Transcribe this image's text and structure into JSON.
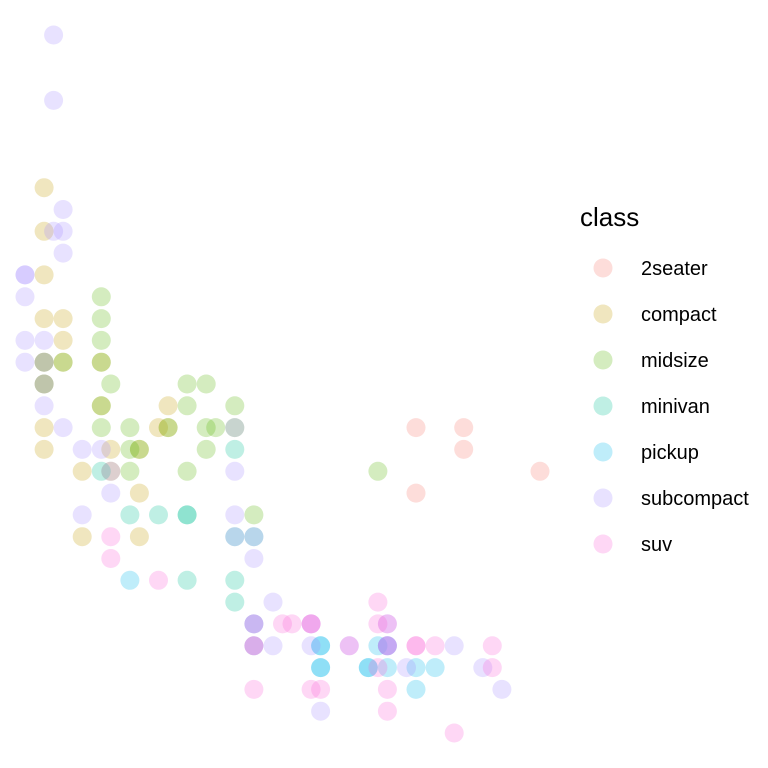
{
  "chart_data": {
    "type": "scatter",
    "title": "",
    "xlabel": "",
    "ylabel": "",
    "axes_visible": false,
    "grid": false,
    "legend": {
      "title": "class",
      "position": "right",
      "entries": [
        "2seater",
        "compact",
        "midsize",
        "minivan",
        "pickup",
        "subcompact",
        "suv"
      ]
    },
    "colors": {
      "2seater": "#F8766D",
      "compact": "#C49A00",
      "midsize": "#53B400",
      "minivan": "#00C094",
      "pickup": "#00B6EB",
      "subcompact": "#A58AFF",
      "suv": "#FB61D7"
    },
    "point_opacity": 0.25,
    "xlim": [
      1.6,
      7.0
    ],
    "ylim": [
      12,
      44
    ],
    "series": [
      {
        "name": "2seater",
        "x": [
          5.7,
          5.7,
          6.2,
          6.2,
          7.0
        ],
        "y": [
          26,
          23,
          26,
          25,
          24
        ]
      },
      {
        "name": "compact",
        "x": [
          1.8,
          1.8,
          1.8,
          1.8,
          1.8,
          1.8,
          1.8,
          1.8,
          2.0,
          2.0,
          2.0,
          2.4,
          2.4,
          2.5,
          2.5,
          2.8,
          2.8,
          2.8,
          3.0,
          3.1,
          3.1,
          2.2,
          2.2
        ],
        "y": [
          37,
          35,
          33,
          31,
          29,
          26,
          25,
          28,
          29,
          31,
          30,
          29,
          27,
          25,
          24,
          25,
          21,
          23,
          26,
          26,
          27,
          24,
          21
        ]
      },
      {
        "name": "midsize",
        "x": [
          2.4,
          2.4,
          2.4,
          2.4,
          2.4,
          2.5,
          3.1,
          3.3,
          3.3,
          3.3,
          3.5,
          3.5,
          3.5,
          3.6,
          3.8,
          3.8,
          4.0,
          2.7,
          2.7,
          2.7,
          1.8,
          1.8,
          2.0,
          2.4,
          2.8,
          5.3
        ],
        "y": [
          32,
          30,
          29,
          31,
          27,
          28,
          26,
          28,
          27,
          24,
          26,
          25,
          28,
          26,
          27,
          26,
          22,
          25,
          26,
          24,
          28,
          29,
          29,
          26,
          25,
          24
        ]
      },
      {
        "name": "minivan",
        "x": [
          2.4,
          3.0,
          3.3,
          3.3,
          3.3,
          3.8,
          3.8,
          3.8,
          4.0,
          3.8,
          2.7
        ],
        "y": [
          24,
          22,
          22,
          19,
          22,
          21,
          19,
          18,
          21,
          25,
          22
        ]
      },
      {
        "name": "pickup",
        "x": [
          2.7,
          4.0,
          4.0,
          4.7,
          4.7,
          4.7,
          4.7,
          5.2,
          5.2,
          5.3,
          5.4,
          5.4,
          5.7,
          5.7,
          5.9
        ],
        "y": [
          19,
          16,
          17,
          16,
          15,
          16,
          15,
          15,
          15,
          16,
          15,
          16,
          14,
          15,
          15
        ]
      },
      {
        "name": "subcompact",
        "x": [
          1.6,
          1.6,
          1.6,
          1.6,
          1.6,
          1.8,
          1.8,
          1.8,
          1.8,
          1.9,
          1.9,
          1.9,
          2.0,
          2.0,
          2.0,
          2.0,
          2.5,
          2.5,
          2.2,
          2.2,
          2.4,
          3.8,
          3.8,
          3.8,
          3.8,
          4.0,
          4.0,
          4.0,
          4.2,
          4.2,
          4.6,
          4.6,
          4.7,
          5.0,
          5.4,
          5.4,
          5.4,
          5.6,
          6.1,
          6.4,
          6.6
        ],
        "y": [
          33,
          32,
          30,
          29,
          33,
          30,
          29,
          27,
          28,
          44,
          41,
          35,
          34,
          36,
          35,
          26,
          24,
          23,
          25,
          22,
          25,
          26,
          24,
          22,
          21,
          20,
          21,
          17,
          18,
          16,
          17,
          16,
          13,
          16,
          16,
          17,
          16,
          15,
          16,
          15,
          14
        ]
      },
      {
        "name": "suv",
        "x": [
          2.5,
          2.5,
          3.0,
          4.0,
          4.0,
          4.0,
          4.0,
          4.3,
          4.4,
          4.6,
          4.6,
          4.6,
          4.7,
          5.0,
          5.3,
          5.3,
          5.3,
          5.4,
          5.4,
          5.4,
          5.4,
          5.7,
          5.7,
          5.9,
          6.1,
          6.5,
          6.5
        ],
        "y": [
          20,
          21,
          19,
          16,
          14,
          16,
          17,
          17,
          17,
          17,
          17,
          14,
          14,
          16,
          18,
          17,
          15,
          14,
          16,
          17,
          13,
          16,
          16,
          16,
          12,
          16,
          15
        ]
      }
    ]
  }
}
